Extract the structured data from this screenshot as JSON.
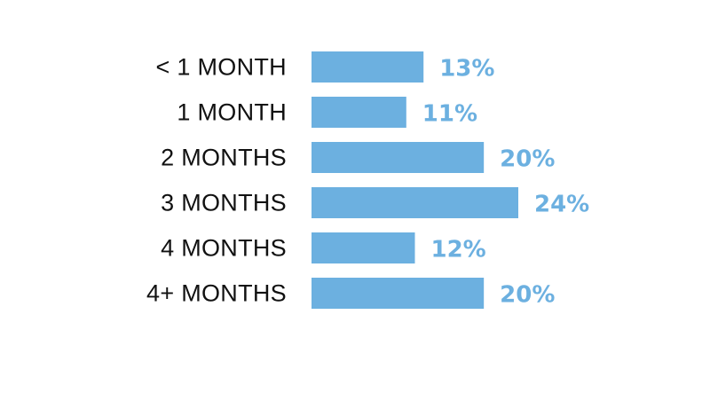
{
  "chart_data": {
    "type": "bar",
    "orientation": "horizontal",
    "categories": [
      "<  1 MONTH",
      "1 MONTH",
      "2 MONTHS",
      "3 MONTHS",
      "4 MONTHS",
      "4+ MONTHS"
    ],
    "values": [
      13,
      11,
      20,
      24,
      12,
      20
    ],
    "value_labels": [
      "13%",
      "11%",
      "20%",
      "24%",
      "12%",
      "20%"
    ],
    "bar_color": "#6cb0e0",
    "label_color": "#6cb0e0",
    "title": "",
    "xlabel": "",
    "ylabel": "",
    "xlim": [
      0,
      24
    ],
    "grid": false,
    "legend": "none"
  }
}
